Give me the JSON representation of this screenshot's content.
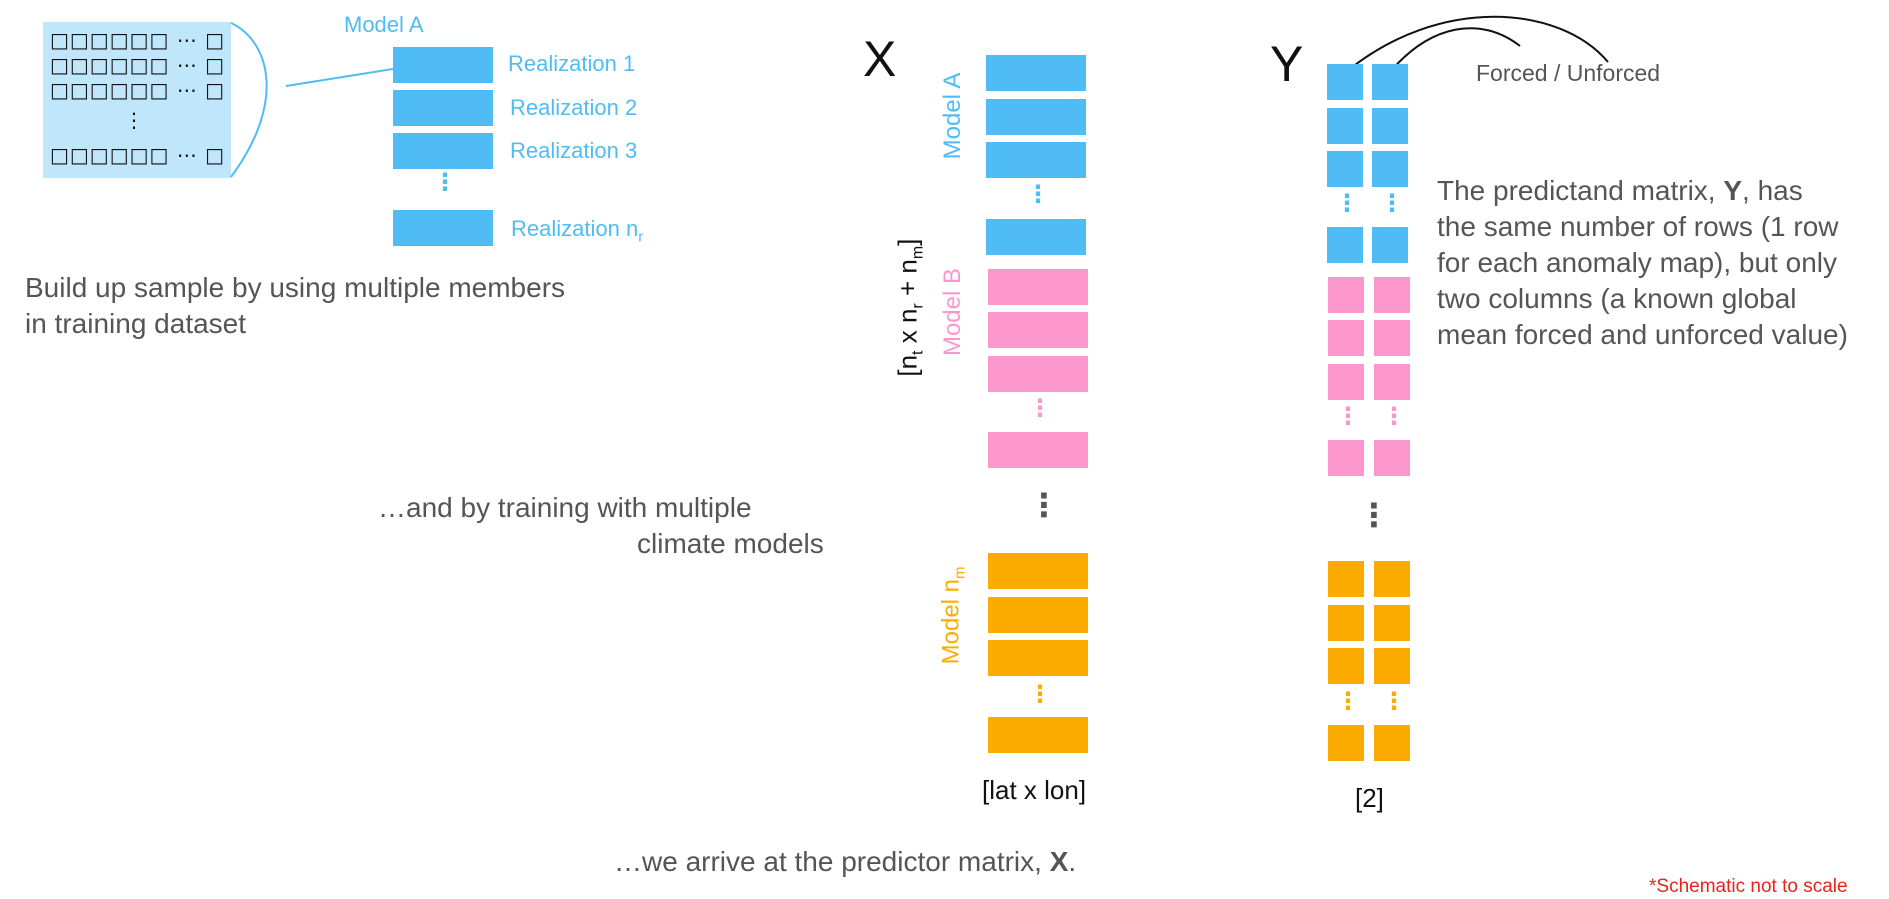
{
  "sample_panel": {
    "model_label": "Model A",
    "grid_rows": [
      "□□□□□□ ⋯ □",
      "□□□□□□ ⋯ □",
      "□□□□□□ ⋯ □",
      "⋮",
      "□□□□□□ ⋯ □"
    ],
    "realizations": [
      "Realization 1",
      "Realization 2",
      "Realization 3",
      "Realization n",
      "r"
    ],
    "caption_line1": "Build up sample by using multiple members",
    "caption_line2": "in training dataset"
  },
  "models_caption": {
    "line1": "…and by training with multiple",
    "line2": "climate models"
  },
  "x_matrix": {
    "title": "X",
    "rows_label_parts": [
      "[n",
      "t",
      " x n",
      "r",
      " + n",
      "m",
      "]"
    ],
    "model_a": "Model A",
    "model_b": "Model B",
    "model_n": "Model n",
    "model_n_sub": "m",
    "cols_label": "[lat x lon]"
  },
  "y_matrix": {
    "title": "Y",
    "arrow_label": "Forced / Unforced",
    "cols_label": "[2]",
    "description": [
      {
        "pre": "The predictand matrix, ",
        "bold": "Y",
        "post": ", has"
      },
      "the same number of rows (1 row",
      "for each anomaly map), but only",
      "two columns (a known global",
      "mean forced and unforced value)"
    ]
  },
  "bottom_caption": {
    "text": "…we arrive at the predictor matrix, ",
    "bold": "X",
    "post": "."
  },
  "footnote": "*Schematic not to scale",
  "colors": {
    "model_a": "#4fbcf5",
    "model_b": "#fb97cc",
    "model_n": "#fcac00",
    "footnote": "#e8231c"
  }
}
